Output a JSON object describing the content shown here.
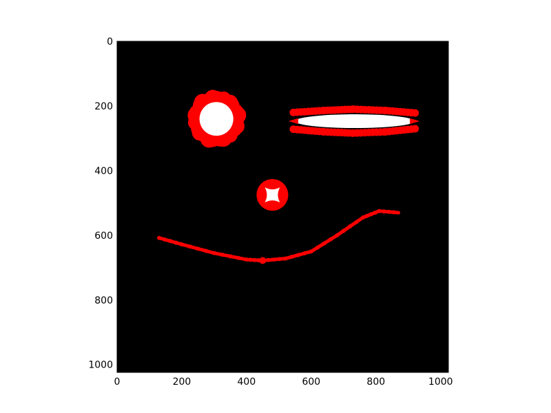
{
  "chart_data": {
    "type": "scatter",
    "title": "",
    "xlabel": "",
    "ylabel": "",
    "xlim": [
      0,
      1024
    ],
    "ylim": [
      1024,
      0
    ],
    "y_inverted": true,
    "xticks": [
      "0",
      "200",
      "400",
      "600",
      "800",
      "1000"
    ],
    "yticks": [
      "0",
      "200",
      "400",
      "600",
      "800",
      "1000"
    ],
    "background_color": "#000000",
    "series": [
      {
        "marker_color": "#ff0000",
        "fill_color": "#ffffff",
        "shape": "ring",
        "points": [
          [
            295,
            180
          ],
          [
            330,
            180
          ],
          [
            352,
            210
          ],
          [
            352,
            270
          ],
          [
            330,
            300
          ],
          [
            295,
            300
          ],
          [
            262,
            270
          ],
          [
            262,
            210
          ]
        ],
        "outer_radius": 72,
        "inner_radius": 48
      },
      {
        "marker_color": "#ff0000",
        "fill_color": "#ffffff",
        "shape": "horizontal-ellipse",
        "x": [
          545,
          640,
          730,
          830,
          925
        ],
        "y_top": [
          220,
          214,
          210,
          214,
          222
        ],
        "y_bottom": [
          272,
          280,
          284,
          280,
          270
        ]
      },
      {
        "marker_color": "#ff0000",
        "fill_color": "#ffffff",
        "shape": "small-ring",
        "center": [
          480,
          475
        ]
      },
      {
        "marker_color": "#ff0000",
        "shape": "curve",
        "x": [
          130,
          200,
          300,
          400,
          450,
          520,
          600,
          680,
          760,
          810,
          870
        ],
        "y": [
          608,
          628,
          655,
          675,
          678,
          672,
          650,
          600,
          545,
          525,
          530
        ]
      }
    ]
  }
}
